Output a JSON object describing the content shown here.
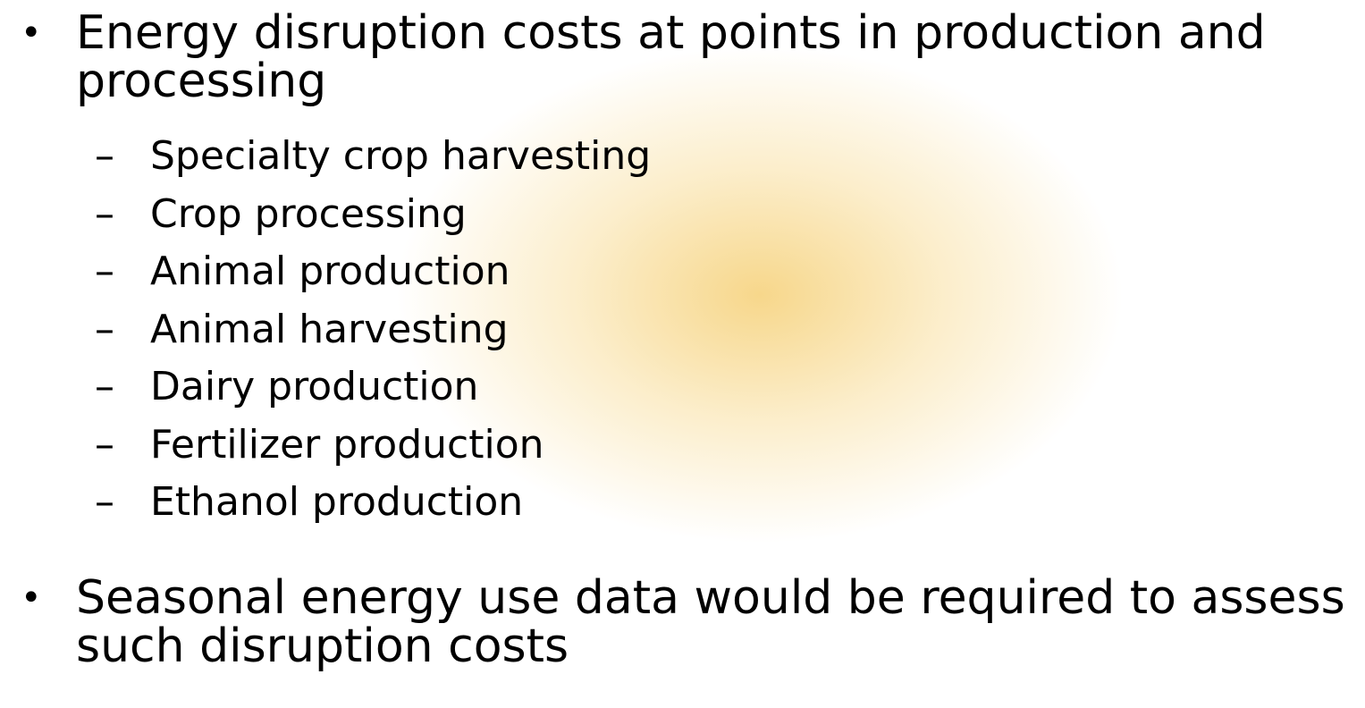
{
  "bullets": [
    {
      "text": "Energy disruption costs at points in production and processing",
      "subitems": [
        "Specialty crop harvesting",
        "Crop processing",
        "Animal production",
        "Animal harvesting",
        "Dairy production",
        "Fertilizer production",
        "Ethanol production"
      ]
    },
    {
      "text": "Seasonal energy use data would be required to assess such disruption costs",
      "subitems": []
    }
  ]
}
